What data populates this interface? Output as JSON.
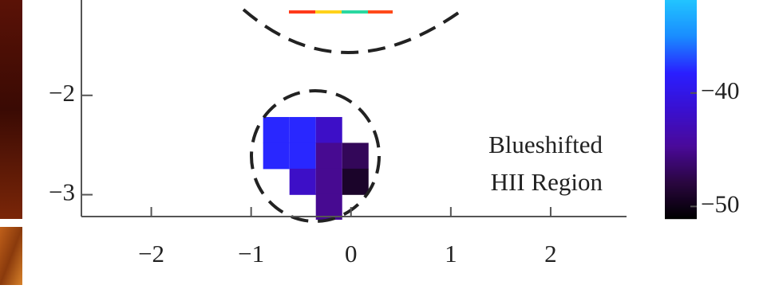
{
  "chart_data": {
    "type": "heatmap",
    "annotation": [
      "Blueshifted",
      "HII Region"
    ],
    "cells": {
      "x": [
        -0.748,
        -0.484,
        -0.22,
        -0.748,
        -0.484,
        -0.22,
        0.044,
        -0.484,
        -0.22,
        0.044,
        -0.22
      ],
      "y": [
        -2.35,
        -2.35,
        -2.35,
        -2.61,
        -2.61,
        -2.61,
        -2.61,
        -2.87,
        -2.87,
        -2.87,
        -3.12
      ],
      "values": [
        -38,
        -38,
        -42,
        -38,
        -38,
        -45,
        -47,
        -42,
        -45,
        -49,
        -45
      ],
      "size": 0.264
    },
    "xlim": [
      -2.7,
      2.76
    ],
    "ylim": [
      -3.22,
      -1.04
    ],
    "xticks": [
      {
        "value": -2,
        "label": "−2"
      },
      {
        "value": -1,
        "label": "−1"
      },
      0,
      1,
      2
    ],
    "yticks": [
      {
        "value": -2,
        "label": "−2"
      },
      {
        "value": -3,
        "label": "−3"
      }
    ],
    "clim": [
      -51.1,
      -31.8
    ],
    "colormap": [
      "#000000",
      "#2a0640",
      "#4a0a9a",
      "#3a10d0",
      "#2a1fff",
      "#1a8cff",
      "#22c4ff"
    ],
    "cticks": [
      {
        "value": -40,
        "label": "−40"
      },
      {
        "value": -50,
        "label": "−50"
      }
    ]
  }
}
